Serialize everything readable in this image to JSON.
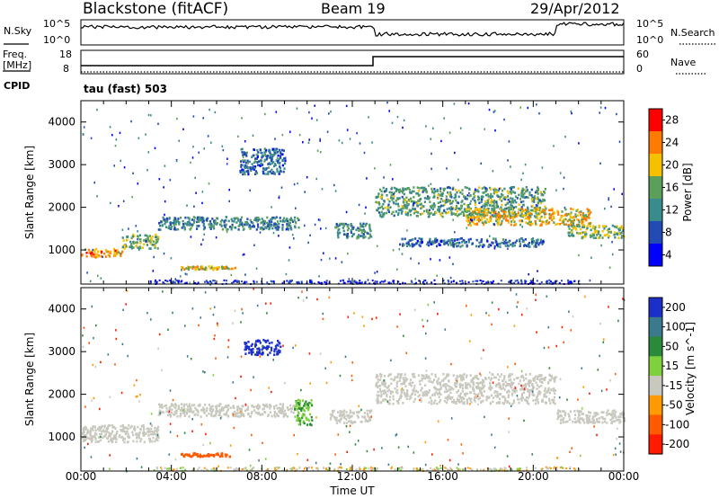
{
  "header": {
    "station": "Blackstone (fitACF)",
    "beam": "Beam 19",
    "date": "29/Apr/2012"
  },
  "noise_panel": {
    "left_label": "N.Sky",
    "left_ticks": [
      "10^5",
      "10^0"
    ],
    "right_label": "N.Search",
    "right_ticks": [
      "10^5",
      "10^0"
    ]
  },
  "freq_panel": {
    "left_label_top": "Freq.",
    "left_label_bottom": "[MHz]",
    "left_ticks": [
      "18",
      "8"
    ],
    "right_label": "Nave",
    "right_ticks": [
      "60",
      "0"
    ],
    "cpid_label": "CPID",
    "cpid_value": "tau (fast) 503"
  },
  "chart_data": [
    {
      "type": "heatmap",
      "title": "",
      "ylabel": "Slant Range [km]",
      "xlabel": "",
      "x_ticks": [
        "00:00",
        "04:00",
        "08:00",
        "12:00",
        "16:00",
        "20:00",
        "00:00"
      ],
      "y_ticks": [
        1000,
        2000,
        3000,
        4000
      ],
      "ylim": [
        200,
        4500
      ],
      "colorbar": {
        "label": "Power [dB]",
        "ticks": [
          4,
          8,
          12,
          16,
          20,
          24,
          28
        ],
        "colors": [
          "#0000ff",
          "#224bb4",
          "#3a8c8c",
          "#5aa05a",
          "#f5c000",
          "#ff7a00",
          "#ff0000"
        ]
      },
      "bands": [
        {
          "t0": 0.0,
          "t1": 1.8,
          "r0": 850,
          "r1": 1050,
          "v": 22
        },
        {
          "t0": 1.8,
          "t1": 3.4,
          "r0": 1050,
          "r1": 1400,
          "v": 16
        },
        {
          "t0": 3.4,
          "t1": 9.6,
          "r0": 1500,
          "r1": 1800,
          "v": 12
        },
        {
          "t0": 4.4,
          "t1": 6.8,
          "r0": 560,
          "r1": 640,
          "v": 20
        },
        {
          "t0": 7.0,
          "t1": 9.0,
          "r0": 2800,
          "r1": 3400,
          "v": 10
        },
        {
          "t0": 11.2,
          "t1": 12.8,
          "r0": 1300,
          "r1": 1650,
          "v": 12
        },
        {
          "t0": 13.0,
          "t1": 20.5,
          "r0": 1800,
          "r1": 2500,
          "v": 14
        },
        {
          "t0": 17.0,
          "t1": 22.5,
          "r0": 1600,
          "r1": 2000,
          "v": 20
        },
        {
          "t0": 21.5,
          "t1": 24.0,
          "r0": 1300,
          "r1": 1600,
          "v": 16
        },
        {
          "t0": 14.0,
          "t1": 20.5,
          "r0": 1100,
          "r1": 1300,
          "v": 10
        }
      ]
    },
    {
      "type": "heatmap",
      "title": "",
      "ylabel": "Slant Range [km]",
      "xlabel": "Time UT",
      "x_ticks": [
        "00:00",
        "04:00",
        "08:00",
        "12:00",
        "16:00",
        "20:00",
        "00:00"
      ],
      "y_ticks": [
        1000,
        2000,
        3000,
        4000
      ],
      "ylim": [
        200,
        4500
      ],
      "colorbar": {
        "label": "Velocity [m s^-1]",
        "ticks": [
          200,
          100,
          50,
          15,
          -15,
          -50,
          -100,
          -200
        ],
        "colors": [
          "#1c2fc8",
          "#3a7a8c",
          "#2a8a3a",
          "#7ed03c",
          "#c8c8be",
          "#ff9a00",
          "#ff5a00",
          "#ff1a00"
        ]
      },
      "bands": [
        {
          "t0": 0.0,
          "t1": 3.4,
          "r0": 900,
          "r1": 1300,
          "v": 0
        },
        {
          "t0": 3.4,
          "t1": 9.4,
          "r0": 1500,
          "r1": 1800,
          "v": 0
        },
        {
          "t0": 4.4,
          "t1": 6.8,
          "r0": 560,
          "r1": 640,
          "v": -60
        },
        {
          "t0": 7.2,
          "t1": 8.8,
          "r0": 2950,
          "r1": 3300,
          "v": 220
        },
        {
          "t0": 9.4,
          "t1": 10.2,
          "r0": 1300,
          "r1": 1900,
          "v": 30
        },
        {
          "t0": 11.0,
          "t1": 12.8,
          "r0": 1350,
          "r1": 1650,
          "v": 0
        },
        {
          "t0": 13.0,
          "t1": 21.0,
          "r0": 1800,
          "r1": 2500,
          "v": 0
        },
        {
          "t0": 21.0,
          "t1": 24.0,
          "r0": 1350,
          "r1": 1650,
          "v": 0
        }
      ]
    }
  ]
}
